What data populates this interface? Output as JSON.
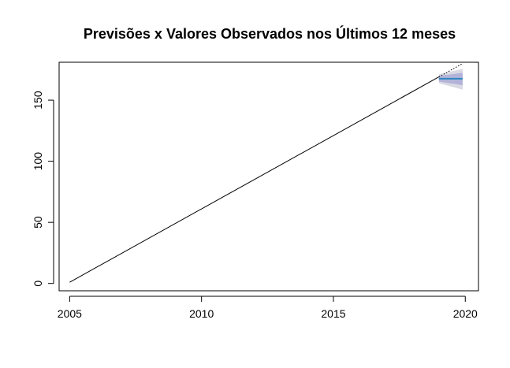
{
  "chart_data": {
    "type": "line",
    "title": "Previsões x Valores Observados nos Últimos 12 meses",
    "xlabel": "",
    "ylabel": "",
    "xlim": [
      2004.6,
      2020.5
    ],
    "ylim": [
      -6,
      181
    ],
    "x_ticks": [
      2005,
      2010,
      2015,
      2020
    ],
    "y_ticks": [
      0,
      50,
      100,
      150
    ],
    "grid": false,
    "legend": "none",
    "series": [
      {
        "role": "observed",
        "color": "#000000",
        "style": "solid",
        "points": [
          [
            2005.0,
            1
          ],
          [
            2019.0,
            169
          ]
        ]
      },
      {
        "role": "observed-last-12-months",
        "color": "#000000",
        "style": "dotted",
        "points": [
          [
            2019.0,
            169
          ],
          [
            2019.9,
            180
          ]
        ]
      },
      {
        "role": "forecast",
        "color": "#2e86c1",
        "style": "solid",
        "points": [
          [
            2019.0,
            167.5
          ],
          [
            2019.9,
            167.5
          ]
        ]
      }
    ],
    "intervals": [
      {
        "level": "95%",
        "color": "#d9d9e3",
        "x": [
          2019.0,
          2019.9
        ],
        "lower": [
          163.8,
          158.6
        ],
        "upper": [
          171.2,
          175.6
        ]
      },
      {
        "level": "80%",
        "color": "#b3b3d9",
        "x": [
          2019.0,
          2019.9
        ],
        "lower": [
          165.2,
          162.2
        ],
        "upper": [
          169.8,
          172.4
        ]
      }
    ]
  }
}
